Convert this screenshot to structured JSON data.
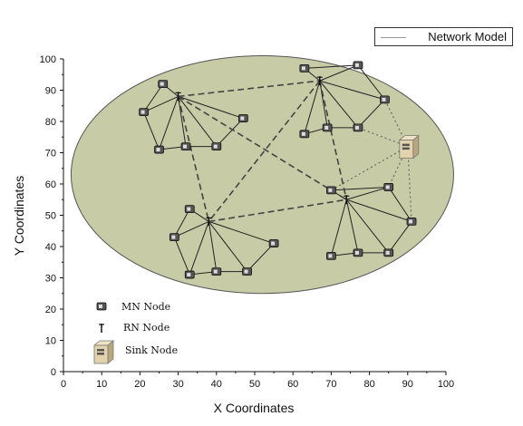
{
  "chart_data": {
    "type": "network",
    "xlabel": "X Coordinates",
    "ylabel": "Y Coordinates",
    "xlim": [
      0,
      100
    ],
    "ylim": [
      0,
      100
    ],
    "x_ticks": [
      "0",
      "10",
      "20",
      "30",
      "40",
      "50",
      "60",
      "70",
      "80",
      "90",
      "100"
    ],
    "y_ticks": [
      "0",
      "10",
      "20",
      "30",
      "40",
      "50",
      "60",
      "70",
      "80",
      "90",
      "100"
    ],
    "legend_box_label": "Network Model",
    "field": {
      "center": [
        52,
        63
      ],
      "radii": [
        50,
        38
      ],
      "color": "#c8cca6"
    },
    "sink": {
      "x": 90,
      "y": 72
    },
    "clusters": [
      {
        "rn": [
          30,
          88
        ],
        "mn": [
          [
            26,
            92
          ],
          [
            21,
            83
          ],
          [
            25,
            71
          ],
          [
            32,
            72
          ],
          [
            40,
            72
          ],
          [
            47,
            81
          ]
        ]
      },
      {
        "rn": [
          67,
          93
        ],
        "mn": [
          [
            63,
            97
          ],
          [
            77,
            98
          ],
          [
            84,
            87
          ],
          [
            77,
            78
          ],
          [
            69,
            78
          ],
          [
            63,
            76
          ]
        ]
      },
      {
        "rn": [
          74,
          55
        ],
        "mn": [
          [
            70,
            58
          ],
          [
            85,
            59
          ],
          [
            91,
            48
          ],
          [
            85,
            38
          ],
          [
            77,
            38
          ],
          [
            70,
            37
          ]
        ]
      },
      {
        "rn": [
          38,
          48
        ],
        "mn": [
          [
            33,
            52
          ],
          [
            29,
            43
          ],
          [
            33,
            31
          ],
          [
            40,
            32
          ],
          [
            48,
            32
          ],
          [
            55,
            41
          ]
        ]
      }
    ],
    "rn_links": [
      [
        0,
        1
      ],
      [
        0,
        3
      ],
      [
        1,
        3
      ],
      [
        1,
        2
      ],
      [
        3,
        2
      ],
      [
        0,
        2
      ]
    ],
    "sink_links": [
      [
        84,
        87
      ],
      [
        77,
        78
      ],
      [
        70,
        58
      ],
      [
        85,
        59
      ],
      [
        91,
        48
      ]
    ],
    "legend_items": [
      {
        "label": "MN Node",
        "icon": "mn-node-icon"
      },
      {
        "label": "RN Node",
        "icon": "rn-node-icon"
      },
      {
        "label": "Sink Node",
        "icon": "sink-node-icon"
      }
    ]
  }
}
